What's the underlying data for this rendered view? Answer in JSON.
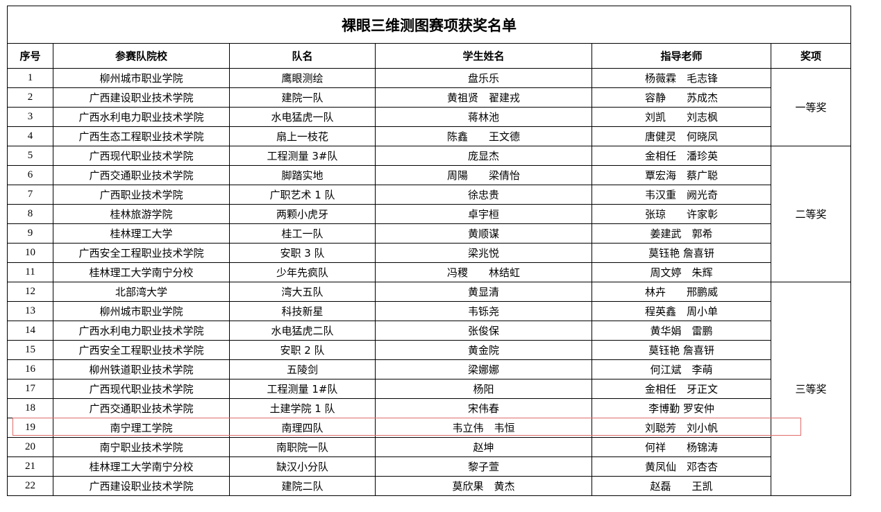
{
  "title": "裸眼三维测图赛项获奖名单",
  "headers": [
    "序号",
    "参赛队院校",
    "队名",
    "学生姓名",
    "指导老师",
    "奖项"
  ],
  "award_groups": [
    {
      "award": "一等奖",
      "rows": [
        [
          1,
          "柳州城市职业学院",
          "鹰眼测绘",
          "盘乐乐",
          "杨薇霖　毛志锋"
        ],
        [
          2,
          "广西建设职业技术学院",
          "建院一队",
          "黄祖贤　翟建戎",
          "容静　　苏成杰"
        ],
        [
          3,
          "广西水利电力职业技术学院",
          "水电猛虎一队",
          "蒋林池",
          "刘凯　　刘志枫"
        ],
        [
          4,
          "广西生态工程职业技术学院",
          "扇上一枝花",
          "陈鑫　　王文德",
          "唐健灵　何晓凤"
        ]
      ]
    },
    {
      "award": "二等奖",
      "rows": [
        [
          5,
          "广西现代职业技术学院",
          "工程测量 3#队",
          "庞显杰",
          "金相任　潘珍英"
        ],
        [
          6,
          "广西交通职业技术学院",
          "脚踏实地",
          "周陽　　梁倩怡",
          "覃宏海　蔡广聪"
        ],
        [
          7,
          "广西职业技术学院",
          "广职艺术 1 队",
          "徐忠贵",
          "韦汉重　阙光奇"
        ],
        [
          8,
          "桂林旅游学院",
          "两颗小虎牙",
          "卓宇桓",
          "张琼　　许家彰"
        ],
        [
          9,
          "桂林理工大学",
          "桂工一队",
          "黄顺谋",
          "姜建武　郭希"
        ],
        [
          10,
          "广西安全工程职业技术学院",
          "安职 3 队",
          "梁兆悦",
          "莫钰艳 詹喜钘"
        ],
        [
          11,
          "桂林理工大学南宁分校",
          "少年先疯队",
          "冯稷　　林结虹",
          "周文婷　朱辉"
        ]
      ]
    },
    {
      "award": "三等奖",
      "rows": [
        [
          12,
          "北部湾大学",
          "湾大五队",
          "黄显清",
          "林卉　　邢鹏威"
        ],
        [
          13,
          "柳州城市职业学院",
          "科技新星",
          "韦铄尧",
          "程英鑫　周小单"
        ],
        [
          14,
          "广西水利电力职业技术学院",
          "水电猛虎二队",
          "张俊保",
          "黄华娟　雷鹏"
        ],
        [
          15,
          "广西安全工程职业技术学院",
          "安职 2 队",
          "黄金院",
          "莫钰艳 詹喜钘"
        ],
        [
          16,
          "柳州铁道职业技术学院",
          "五陵剑",
          "梁娜娜",
          "何江斌　李萌"
        ],
        [
          17,
          "广西现代职业技术学院",
          "工程测量 1#队",
          "杨阳",
          "金相任　牙正文"
        ],
        [
          18,
          "广西交通职业技术学院",
          "土建学院 1 队",
          "宋伟春",
          "李博勤 罗安仲"
        ],
        [
          19,
          "南宁理工学院",
          "南理四队",
          "韦立伟　韦恒",
          "刘聪芳　刘小帆"
        ],
        [
          20,
          "南宁职业技术学院",
          "南职院一队",
          "赵坤",
          "何祥　　杨锦涛"
        ],
        [
          21,
          "桂林理工大学南宁分校",
          "缺汉小分队",
          "黎子萱",
          "黄凤仙　邓杏杏"
        ],
        [
          22,
          "广西建设职业技术学院",
          "建院二队",
          "莫欣果　黄杰",
          "赵磊　　王凯"
        ]
      ]
    }
  ]
}
